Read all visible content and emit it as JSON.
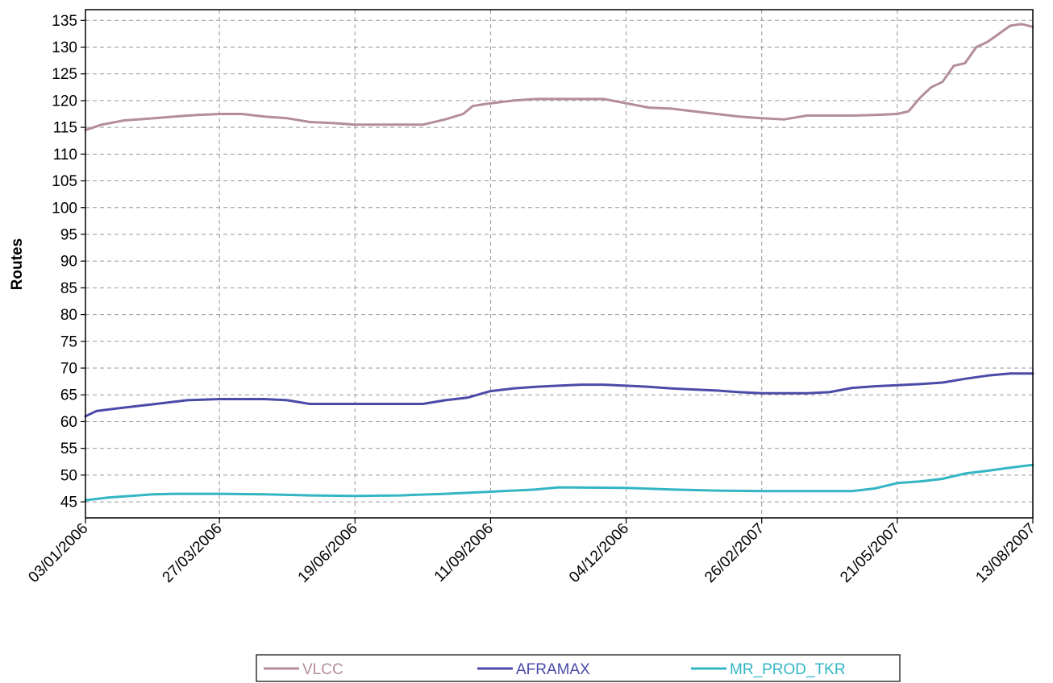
{
  "chart_data": {
    "type": "line",
    "title": "",
    "xlabel": "",
    "ylabel": "Routes",
    "x_ticks": [
      "03/01/2006",
      "27/03/2006",
      "19/06/2006",
      "11/09/2006",
      "04/12/2006",
      "26/02/2007",
      "21/05/2007",
      "13/08/2007"
    ],
    "ylim": [
      42,
      137
    ],
    "y_ticks": [
      45,
      50,
      55,
      60,
      65,
      70,
      75,
      80,
      85,
      90,
      95,
      100,
      105,
      110,
      115,
      120,
      125,
      130,
      135
    ],
    "grid": true,
    "legend_position": "bottom",
    "series": [
      {
        "name": "VLCC",
        "color": "#b48c9c",
        "points": [
          [
            "03/01/2006",
            114.5
          ],
          [
            "13/01/2006",
            115.5
          ],
          [
            "27/01/2006",
            116.3
          ],
          [
            "10/02/2006",
            116.6
          ],
          [
            "27/02/2006",
            117.0
          ],
          [
            "13/03/2006",
            117.3
          ],
          [
            "27/03/2006",
            117.5
          ],
          [
            "10/04/2006",
            117.5
          ],
          [
            "24/04/2006",
            117.0
          ],
          [
            "08/05/2006",
            116.7
          ],
          [
            "22/05/2006",
            116.0
          ],
          [
            "05/06/2006",
            115.8
          ],
          [
            "19/06/2006",
            115.5
          ],
          [
            "03/07/2006",
            115.5
          ],
          [
            "17/07/2006",
            115.5
          ],
          [
            "31/07/2006",
            115.5
          ],
          [
            "14/08/2006",
            116.5
          ],
          [
            "25/08/2006",
            117.5
          ],
          [
            "31/08/2006",
            119.0
          ],
          [
            "11/09/2006",
            119.5
          ],
          [
            "25/09/2006",
            120.0
          ],
          [
            "09/10/2006",
            120.3
          ],
          [
            "23/10/2006",
            120.3
          ],
          [
            "06/11/2006",
            120.3
          ],
          [
            "20/11/2006",
            120.3
          ],
          [
            "04/12/2006",
            119.5
          ],
          [
            "18/12/2006",
            118.7
          ],
          [
            "01/01/2007",
            118.5
          ],
          [
            "15/01/2007",
            118.0
          ],
          [
            "29/01/2007",
            117.5
          ],
          [
            "12/02/2007",
            117.0
          ],
          [
            "26/02/2007",
            116.7
          ],
          [
            "12/03/2007",
            116.5
          ],
          [
            "26/03/2007",
            117.2
          ],
          [
            "09/04/2007",
            117.2
          ],
          [
            "23/04/2007",
            117.2
          ],
          [
            "07/05/2007",
            117.3
          ],
          [
            "21/05/2007",
            117.5
          ],
          [
            "28/05/2007",
            118.0
          ],
          [
            "04/06/2007",
            120.5
          ],
          [
            "11/06/2007",
            122.5
          ],
          [
            "18/06/2007",
            123.5
          ],
          [
            "25/06/2007",
            126.5
          ],
          [
            "02/07/2007",
            127.0
          ],
          [
            "09/07/2007",
            130.0
          ],
          [
            "16/07/2007",
            131.0
          ],
          [
            "23/07/2007",
            132.5
          ],
          [
            "30/07/2007",
            134.0
          ],
          [
            "06/08/2007",
            134.3
          ],
          [
            "13/08/2007",
            133.8
          ]
        ]
      },
      {
        "name": "AFRAMAX",
        "color": "#4a4aa8",
        "points": [
          [
            "03/01/2006",
            61.0
          ],
          [
            "10/01/2006",
            62.0
          ],
          [
            "24/01/2006",
            62.5
          ],
          [
            "07/02/2006",
            63.0
          ],
          [
            "21/02/2006",
            63.5
          ],
          [
            "07/03/2006",
            64.0
          ],
          [
            "27/03/2006",
            64.2
          ],
          [
            "10/04/2006",
            64.2
          ],
          [
            "24/04/2006",
            64.2
          ],
          [
            "08/05/2006",
            64.0
          ],
          [
            "22/05/2006",
            63.3
          ],
          [
            "05/06/2006",
            63.3
          ],
          [
            "19/06/2006",
            63.3
          ],
          [
            "03/07/2006",
            63.3
          ],
          [
            "17/07/2006",
            63.3
          ],
          [
            "31/07/2006",
            63.3
          ],
          [
            "14/08/2006",
            64.0
          ],
          [
            "28/08/2006",
            64.5
          ],
          [
            "11/09/2006",
            65.7
          ],
          [
            "25/09/2006",
            66.2
          ],
          [
            "09/10/2006",
            66.5
          ],
          [
            "23/10/2006",
            66.7
          ],
          [
            "06/11/2006",
            66.9
          ],
          [
            "20/11/2006",
            66.9
          ],
          [
            "04/12/2006",
            66.7
          ],
          [
            "18/12/2006",
            66.5
          ],
          [
            "01/01/2007",
            66.2
          ],
          [
            "15/01/2007",
            66.0
          ],
          [
            "29/01/2007",
            65.8
          ],
          [
            "12/02/2007",
            65.5
          ],
          [
            "26/02/2007",
            65.3
          ],
          [
            "12/03/2007",
            65.3
          ],
          [
            "26/03/2007",
            65.3
          ],
          [
            "09/04/2007",
            65.5
          ],
          [
            "23/04/2007",
            66.3
          ],
          [
            "07/05/2007",
            66.6
          ],
          [
            "21/05/2007",
            66.8
          ],
          [
            "04/06/2007",
            67.0
          ],
          [
            "18/06/2007",
            67.3
          ],
          [
            "02/07/2007",
            68.0
          ],
          [
            "16/07/2007",
            68.6
          ],
          [
            "30/07/2007",
            69.0
          ],
          [
            "13/08/2007",
            69.0
          ]
        ]
      },
      {
        "name": "MR_PROD_TKR",
        "color": "#33b5c4",
        "points": [
          [
            "03/01/2006",
            45.3
          ],
          [
            "17/01/2006",
            45.8
          ],
          [
            "31/01/2006",
            46.1
          ],
          [
            "14/02/2006",
            46.4
          ],
          [
            "28/02/2006",
            46.5
          ],
          [
            "27/03/2006",
            46.5
          ],
          [
            "24/04/2006",
            46.4
          ],
          [
            "22/05/2006",
            46.2
          ],
          [
            "19/06/2006",
            46.1
          ],
          [
            "17/07/2006",
            46.2
          ],
          [
            "14/08/2006",
            46.5
          ],
          [
            "11/09/2006",
            46.9
          ],
          [
            "09/10/2006",
            47.3
          ],
          [
            "23/10/2006",
            47.7
          ],
          [
            "04/12/2006",
            47.6
          ],
          [
            "01/01/2007",
            47.3
          ],
          [
            "29/01/2007",
            47.1
          ],
          [
            "26/02/2007",
            47.0
          ],
          [
            "26/03/2007",
            47.0
          ],
          [
            "23/04/2007",
            47.0
          ],
          [
            "07/05/2007",
            47.5
          ],
          [
            "21/05/2007",
            48.5
          ],
          [
            "04/06/2007",
            48.8
          ],
          [
            "18/06/2007",
            49.3
          ],
          [
            "02/07/2007",
            50.3
          ],
          [
            "16/07/2007",
            50.8
          ],
          [
            "30/07/2007",
            51.4
          ],
          [
            "13/08/2007",
            51.9
          ]
        ]
      }
    ]
  }
}
